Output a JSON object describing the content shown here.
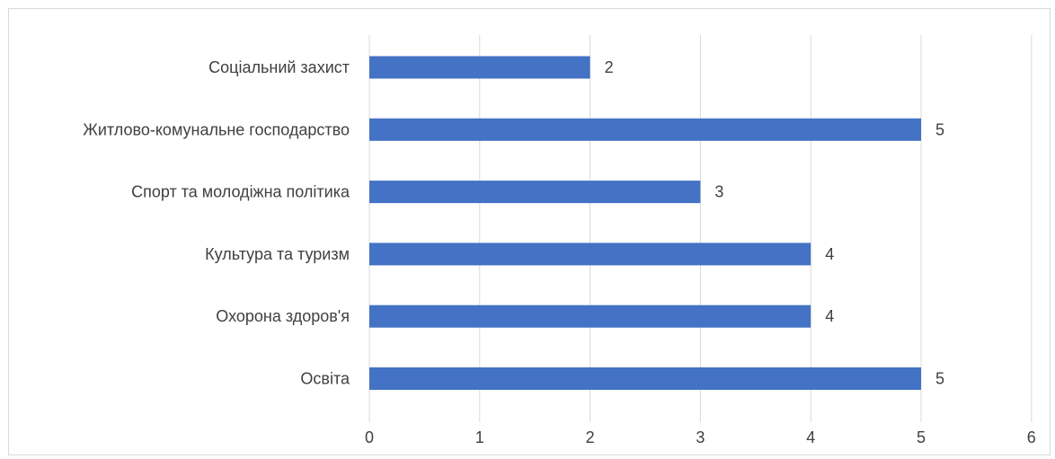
{
  "chart_data": {
    "type": "bar",
    "orientation": "horizontal",
    "categories": [
      "Соціальний захист",
      "Житлово-комунальне господарство",
      "Спорт та молодіжна політика",
      "Культура та туризм",
      "Охорона здоров'я",
      "Освіта"
    ],
    "values": [
      2,
      5,
      3,
      4,
      4,
      5
    ],
    "title": "",
    "xlabel": "",
    "ylabel": "",
    "xlim": [
      0,
      6
    ],
    "x_ticks": [
      "0",
      "1",
      "2",
      "3",
      "4",
      "5",
      "6"
    ],
    "data_labels": [
      "2",
      "5",
      "3",
      "4",
      "4",
      "5"
    ],
    "grid": true,
    "legend": "none",
    "bar_color": "#4472C4",
    "gridline_color": "#d9d9d9"
  }
}
